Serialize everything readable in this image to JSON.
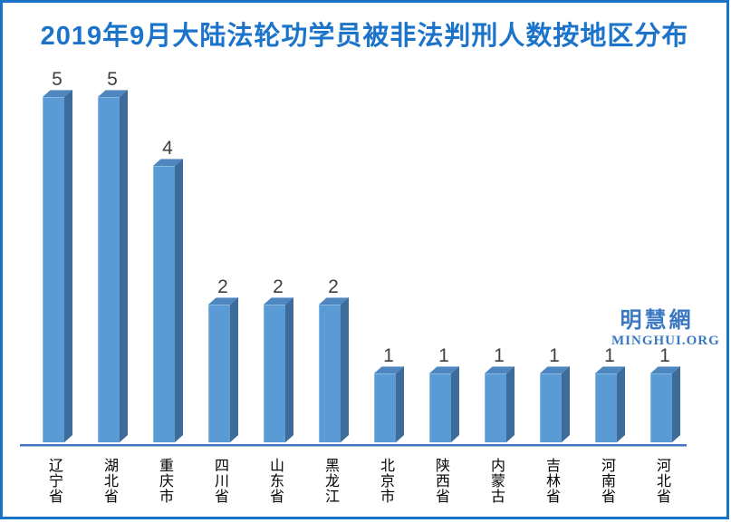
{
  "frame": {
    "background": "#ffffff",
    "border_color": "#1a73c8"
  },
  "title": {
    "text": "2019年9月大陆法轮功学员被非法判刑人数按地区分布",
    "color": "#1b74c9"
  },
  "watermark": {
    "cjk": "明慧網",
    "latin": "MINGHUI.ORG",
    "color": "#3b78c3"
  },
  "chart_data": {
    "type": "bar",
    "style": "3d-column",
    "title": "2019年9月大陆法轮功学员被非法判刑人数按地区分布",
    "categories": [
      "辽宁省",
      "湖北省",
      "重庆市",
      "四川省",
      "山东省",
      "黑龙江",
      "北京市",
      "陕西省",
      "内蒙古",
      "吉林省",
      "河南省",
      "河北省"
    ],
    "values": [
      5,
      5,
      4,
      2,
      2,
      2,
      1,
      1,
      1,
      1,
      1,
      1
    ],
    "ylim": [
      0,
      5
    ],
    "xlabel": "",
    "ylabel": "",
    "legend": "none",
    "grid": false,
    "data_labels": true,
    "colors": {
      "bar_front": "#5b9bd5",
      "bar_side": "#3d6b9a",
      "bar_top": "#4e86c0",
      "value_label": "#404040",
      "category_label": "#000000",
      "axis_line": "#4472c4",
      "axis_line_light": "#a3bfe0"
    }
  }
}
